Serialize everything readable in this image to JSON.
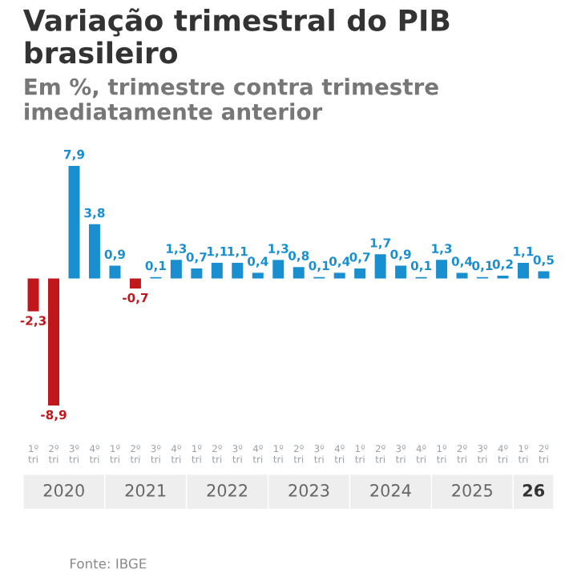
{
  "chart_data": {
    "type": "bar",
    "title": "Variação trimestral do PIB brasileiro",
    "subtitle": "Em %, trimestre contra trimestre imediatamente anterior",
    "categories": [
      "1º tri",
      "2º tri",
      "3º tri",
      "4º tri",
      "1º tri",
      "2º tri",
      "3º tri",
      "4º tri",
      "1º tri",
      "2º tri",
      "3º tri",
      "4º tri",
      "1º tri",
      "2º tri",
      "3º tri",
      "4º tri",
      "1º tri",
      "2º tri",
      "3º tri",
      "4º tri",
      "1º tri",
      "2º tri",
      "3º tri",
      "4º tri",
      "1º tri",
      "2º tri"
    ],
    "values": [
      -2.3,
      -8.9,
      7.9,
      3.8,
      0.9,
      -0.7,
      0.1,
      1.3,
      0.7,
      1.1,
      1.1,
      0.4,
      1.3,
      0.8,
      0.1,
      0.4,
      0.7,
      1.7,
      0.9,
      0.1,
      1.3,
      0.4,
      0.1,
      0.2,
      1.1,
      0.5
    ],
    "value_labels": [
      "-2,3",
      "-8,9",
      "7,9",
      "3,8",
      "0,9",
      "-0,7",
      "0,1",
      "1,3",
      "0,7",
      "1,1",
      "1,1",
      "0,4",
      "1,3",
      "0,8",
      "0,1",
      "0,4",
      "0,7",
      "1,7",
      "0,9",
      "0,1",
      "1,3",
      "0,4",
      "0,1",
      "0,2",
      "1,1",
      "0,5"
    ],
    "colors": [
      "#c0171c",
      "#c0171c",
      "#1a8fd0",
      "#1a8fd0",
      "#1a8fd0",
      "#c0171c",
      "#1a8fd0",
      "#1a8fd0",
      "#1a8fd0",
      "#1a8fd0",
      "#1a8fd0",
      "#1a8fd0",
      "#1a8fd0",
      "#1a8fd0",
      "#1a8fd0",
      "#1a8fd0",
      "#1a8fd0",
      "#1a8fd0",
      "#1a8fd0",
      "#1a8fd0",
      "#1a8fd0",
      "#1a8fd0",
      "#1a8fd0",
      "#1a8fd0",
      "#1a8fd0",
      "#1a8fd0"
    ],
    "annotations": [
      "2020",
      "2021",
      "2022",
      "2023",
      "2024",
      "2025",
      "26",
      "Fonte: IBGE"
    ],
    "grid": false,
    "legend": false
  }
}
